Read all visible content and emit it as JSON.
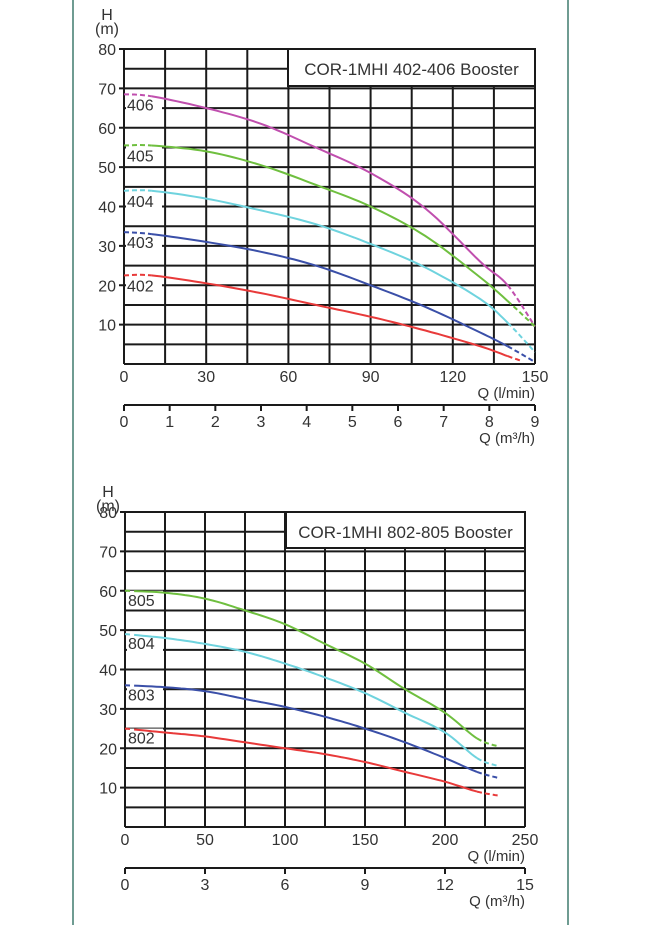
{
  "chart_data": [
    {
      "type": "line",
      "title": "COR-1MHI 402-406 Booster",
      "ylabel_top": "H",
      "ylabel_unit": "(m)",
      "xlabel": "Q (l/min)",
      "xlabel2": "Q (m³/h)",
      "xlim": [
        0,
        150
      ],
      "ylim": [
        0,
        80
      ],
      "x_ticks": [
        0,
        30,
        60,
        90,
        120,
        150
      ],
      "x_tick_labels": [
        "0",
        "30",
        "60",
        "90",
        "120",
        "150"
      ],
      "x_minor_step": 15,
      "y_ticks": [
        10,
        20,
        30,
        40,
        50,
        60,
        70,
        80
      ],
      "y_tick_labels": [
        "10",
        "20",
        "30",
        "40",
        "50",
        "60",
        "70",
        "80"
      ],
      "y_minor_step": 5,
      "x2_lim": [
        0,
        9
      ],
      "x2_ticks": [
        0,
        1,
        2,
        3,
        4,
        5,
        6,
        7,
        8,
        9
      ],
      "x2_tick_labels": [
        "0",
        "1",
        "2",
        "3",
        "4",
        "5",
        "6",
        "7",
        "8",
        "9"
      ],
      "grid": true,
      "solid_range": [
        10,
        140
      ],
      "series": [
        {
          "name": "406",
          "color": "#c04fae",
          "x": [
            0,
            10,
            30,
            50,
            70,
            90,
            110,
            130,
            140,
            150
          ],
          "y": [
            68.5,
            68,
            65,
            61,
            55,
            48.5,
            39.5,
            26,
            20,
            9.5
          ]
        },
        {
          "name": "405",
          "color": "#6fbf3f",
          "x": [
            0,
            10,
            30,
            50,
            70,
            90,
            110,
            130,
            140,
            150
          ],
          "y": [
            55.5,
            55.5,
            54,
            50.5,
            45.5,
            40,
            32.5,
            22,
            16,
            9.5
          ]
        },
        {
          "name": "404",
          "color": "#6fd3de",
          "x": [
            0,
            10,
            30,
            50,
            70,
            90,
            110,
            130,
            140,
            150
          ],
          "y": [
            44,
            44,
            42,
            39,
            35.5,
            30.5,
            24.5,
            16.5,
            10.5,
            3
          ]
        },
        {
          "name": "403",
          "color": "#3a4fa8",
          "x": [
            0,
            10,
            30,
            50,
            70,
            90,
            110,
            130,
            140,
            150
          ],
          "y": [
            33.5,
            33,
            31,
            28.5,
            25,
            20,
            14.5,
            8,
            4.5,
            0.5
          ]
        },
        {
          "name": "402",
          "color": "#e83a3a",
          "x": [
            0,
            10,
            30,
            50,
            70,
            90,
            110,
            130,
            140,
            145
          ],
          "y": [
            22.5,
            22.5,
            20.5,
            18,
            15,
            12,
            8.5,
            4.5,
            2,
            0.8
          ]
        }
      ]
    },
    {
      "type": "line",
      "title": "COR-1MHI 802-805 Booster",
      "ylabel_top": "H",
      "ylabel_unit": "(m)",
      "xlabel": "Q (l/min)",
      "xlabel2": "Q (m³/h)",
      "xlim": [
        0,
        250
      ],
      "ylim": [
        0,
        80
      ],
      "x_ticks": [
        0,
        50,
        100,
        150,
        200,
        250
      ],
      "x_tick_labels": [
        "0",
        "50",
        "100",
        "150",
        "200",
        "250"
      ],
      "x_minor_step": 25,
      "y_ticks": [
        10,
        20,
        30,
        40,
        50,
        60,
        70,
        80
      ],
      "y_tick_labels": [
        "10",
        "20",
        "30",
        "40",
        "50",
        "60",
        "70",
        "80"
      ],
      "y_minor_step": 5,
      "x2_lim": [
        0,
        15
      ],
      "x2_ticks": [
        0,
        3,
        6,
        9,
        12,
        15
      ],
      "x2_tick_labels": [
        "0",
        "3",
        "6",
        "9",
        "12",
        "15"
      ],
      "grid": true,
      "solid_range": [
        5,
        220
      ],
      "series": [
        {
          "name": "805",
          "color": "#6fbf3f",
          "x": [
            0,
            25,
            50,
            75,
            100,
            125,
            150,
            175,
            200,
            220,
            233
          ],
          "y": [
            60,
            59.5,
            58,
            55,
            51.5,
            46.5,
            41.5,
            35,
            29,
            22.5,
            20.5
          ]
        },
        {
          "name": "804",
          "color": "#6fd3de",
          "x": [
            0,
            25,
            50,
            75,
            100,
            125,
            150,
            175,
            200,
            220,
            233
          ],
          "y": [
            49,
            48,
            46.5,
            44.5,
            41.5,
            38,
            34,
            29,
            24,
            17.5,
            15.5
          ]
        },
        {
          "name": "803",
          "color": "#3a4fa8",
          "x": [
            0,
            25,
            50,
            75,
            100,
            125,
            150,
            175,
            200,
            220,
            233
          ],
          "y": [
            36,
            35.5,
            34.5,
            32.5,
            30.5,
            28,
            25,
            21.5,
            17.5,
            14,
            12.5
          ]
        },
        {
          "name": "802",
          "color": "#e83a3a",
          "x": [
            0,
            25,
            50,
            75,
            100,
            125,
            150,
            175,
            200,
            220,
            233
          ],
          "y": [
            25,
            24,
            23,
            21.5,
            20,
            18.5,
            16.5,
            14,
            11.5,
            9,
            8
          ]
        }
      ]
    }
  ]
}
